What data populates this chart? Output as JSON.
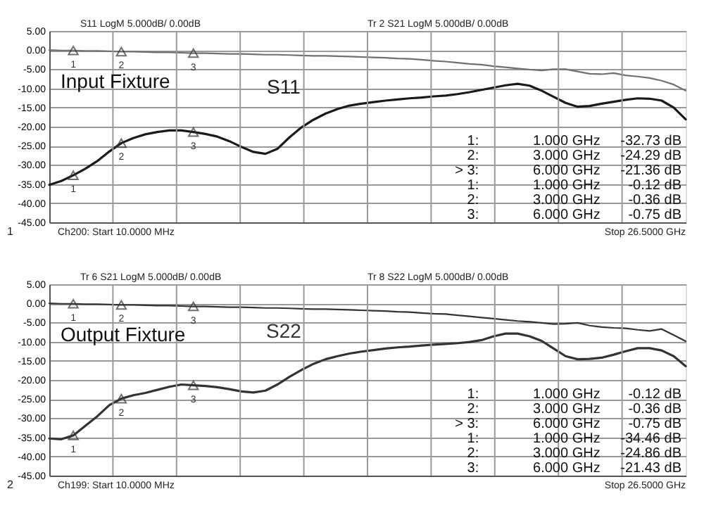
{
  "chart_data": [
    {
      "type": "line",
      "title": "Input Fixture",
      "ylim": [
        -45,
        5
      ],
      "grid": true,
      "tick_labels": "y",
      "categories": [
        null,
        null,
        null,
        null,
        null,
        null,
        null,
        null,
        null,
        null,
        null,
        null,
        null,
        null,
        null,
        null,
        null,
        null,
        null,
        null,
        null,
        null,
        null,
        null,
        null,
        null,
        null,
        null,
        null,
        null,
        null,
        null,
        null,
        null,
        null,
        null,
        null,
        null,
        null,
        null,
        null,
        null,
        null,
        null,
        null,
        null,
        null,
        null,
        null,
        null,
        null,
        null,
        null,
        null
      ],
      "yticks": [
        {
          "value": 5,
          "label": "5.00"
        },
        {
          "value": 0,
          "label": "0.00"
        },
        {
          "value": -5,
          "label": "-5.00"
        },
        {
          "value": -10,
          "label": "-10.00"
        },
        {
          "value": -15,
          "label": "-15.00"
        },
        {
          "value": -20,
          "label": "-20.00"
        },
        {
          "value": -25,
          "label": "-25.00"
        },
        {
          "value": -30,
          "label": "-30.00"
        },
        {
          "value": -35,
          "label": "-35.00"
        },
        {
          "value": -40,
          "label": "-40.00"
        },
        {
          "value": -45,
          "label": "-45.00"
        }
      ],
      "series": [
        {
          "name": "S11",
          "color": "#1a1a1a",
          "values": [
            -35.2,
            -34.2,
            -32.7,
            -31.0,
            -29.0,
            -26.5,
            -24.3,
            -23.0,
            -22.0,
            -21.4,
            -21.0,
            -21.0,
            -21.4,
            -21.9,
            -22.6,
            -23.8,
            -25.3,
            -26.6,
            -27.1,
            -25.8,
            -22.8,
            -20.2,
            -18.2,
            -16.6,
            -15.4,
            -14.5,
            -14.0,
            -13.6,
            -13.2,
            -12.9,
            -12.6,
            -12.4,
            -12.1,
            -11.9,
            -11.5,
            -11.0,
            -10.4,
            -9.8,
            -9.2,
            -8.8,
            -9.3,
            -10.6,
            -12.2,
            -13.8,
            -14.8,
            -14.6,
            -14.0,
            -13.5,
            -13.0,
            -12.6,
            -12.7,
            -13.2,
            -15.0,
            -18.1
          ]
        },
        {
          "color": "#707070",
          "values": [
            0.0,
            -0.1,
            -0.1,
            -0.2,
            -0.2,
            -0.3,
            -0.4,
            -0.4,
            -0.5,
            -0.6,
            -0.6,
            -0.7,
            -0.8,
            -0.8,
            -0.9,
            -1.0,
            -1.0,
            -1.1,
            -1.2,
            -1.2,
            -1.3,
            -1.4,
            -1.5,
            -1.5,
            -1.6,
            -1.7,
            -1.8,
            -1.9,
            -2.0,
            -2.2,
            -2.3,
            -2.5,
            -2.8,
            -3.0,
            -3.3,
            -3.6,
            -3.8,
            -4.2,
            -4.5,
            -4.8,
            -5.1,
            -5.3,
            -5.0,
            -5.0,
            -5.6,
            -6.2,
            -6.3,
            -6.0,
            -6.6,
            -6.9,
            -7.3,
            -8.0,
            -9.0,
            -10.6
          ]
        },
        {
          "type": "scatter",
          "marker": "triangle",
          "color": "#333333",
          "values": [
            null,
            null,
            -32.7,
            null,
            null,
            null,
            -24.3,
            null,
            null,
            null,
            null,
            null,
            -21.4,
            null,
            null,
            null,
            null,
            null,
            null,
            null,
            null,
            null,
            null,
            null,
            null,
            null,
            null,
            null,
            null,
            null,
            null,
            null,
            null,
            null,
            null,
            null,
            null,
            null,
            null,
            null,
            null,
            null,
            null,
            null,
            null,
            null,
            null,
            null,
            null,
            null,
            null,
            null,
            null,
            null
          ]
        },
        {
          "type": "scatter",
          "marker": "triangle",
          "color": "#333333",
          "values": [
            null,
            null,
            -0.1,
            null,
            null,
            null,
            -0.4,
            null,
            null,
            null,
            null,
            null,
            -0.8,
            null,
            null,
            null,
            null,
            null,
            null,
            null,
            null,
            null,
            null,
            null,
            null,
            null,
            null,
            null,
            null,
            null,
            null,
            null,
            null,
            null,
            null,
            null,
            null,
            null,
            null,
            null,
            null,
            null,
            null,
            null,
            null,
            null,
            null,
            null,
            null,
            null,
            null,
            null,
            null,
            null
          ]
        }
      ],
      "annotations": [
        "S11 LogM 5.000dB/ 0.00dB",
        "Tr 2 S21 LogM 5.000dB/ 0.00dB",
        "Ch200: Start 10.0000 MHz",
        "Stop 26.5000 GHz",
        "1",
        "1:",
        "1.000 GHz",
        "-32.73 dB",
        "2:",
        "3.000 GHz",
        "-24.29 dB",
        "> 3:",
        "6.000 GHz",
        "-21.36 dB",
        "1:",
        "1.000 GHz",
        "-0.12 dB",
        "2:",
        "3.000 GHz",
        "-0.36 dB",
        "3:",
        "6.000 GHz",
        "-0.75 dB",
        "1",
        "2",
        "3",
        "1",
        "2",
        "3"
      ]
    },
    {
      "type": "line",
      "title": "Output Fixture",
      "ylim": [
        -45,
        5
      ],
      "grid": true,
      "tick_labels": "y",
      "categories": [
        null,
        null,
        null,
        null,
        null,
        null,
        null,
        null,
        null,
        null,
        null,
        null,
        null,
        null,
        null,
        null,
        null,
        null,
        null,
        null,
        null,
        null,
        null,
        null,
        null,
        null,
        null,
        null,
        null,
        null,
        null,
        null,
        null,
        null,
        null,
        null,
        null,
        null,
        null,
        null,
        null,
        null,
        null,
        null,
        null,
        null,
        null,
        null,
        null,
        null,
        null,
        null,
        null,
        null
      ],
      "yticks": [
        {
          "value": 5,
          "label": "5.00"
        },
        {
          "value": 0,
          "label": "0.00"
        },
        {
          "value": -5,
          "label": "-5.00"
        },
        {
          "value": -10,
          "label": "-10.00"
        },
        {
          "value": -15,
          "label": "-15.00"
        },
        {
          "value": -20,
          "label": "-20.00"
        },
        {
          "value": -25,
          "label": "-25.00"
        },
        {
          "value": -30,
          "label": "-30.00"
        },
        {
          "value": -35,
          "label": "-35.00"
        },
        {
          "value": -40,
          "label": "-40.00"
        },
        {
          "value": -45,
          "label": "-45.00"
        }
      ],
      "series": [
        {
          "name": "S22",
          "color": "#333333",
          "values": [
            -35.3,
            -35.5,
            -34.5,
            -32.0,
            -29.5,
            -26.6,
            -24.9,
            -24.0,
            -23.4,
            -22.6,
            -21.8,
            -21.2,
            -21.4,
            -21.6,
            -21.9,
            -22.4,
            -23.0,
            -23.3,
            -22.8,
            -21.2,
            -19.2,
            -17.4,
            -15.8,
            -14.6,
            -13.8,
            -13.1,
            -12.6,
            -12.2,
            -11.8,
            -11.5,
            -11.3,
            -11.0,
            -10.8,
            -10.6,
            -10.4,
            -10.1,
            -9.6,
            -8.6,
            -7.9,
            -7.9,
            -8.6,
            -9.8,
            -11.8,
            -13.8,
            -14.6,
            -14.5,
            -14.2,
            -13.4,
            -12.5,
            -11.7,
            -11.7,
            -12.3,
            -13.8,
            -16.4
          ]
        },
        {
          "color": "#333333",
          "values": [
            0.0,
            -0.1,
            -0.1,
            -0.2,
            -0.2,
            -0.3,
            -0.4,
            -0.4,
            -0.5,
            -0.6,
            -0.6,
            -0.7,
            -0.8,
            -0.8,
            -0.9,
            -1.0,
            -1.0,
            -1.1,
            -1.2,
            -1.2,
            -1.3,
            -1.4,
            -1.5,
            -1.5,
            -1.6,
            -1.7,
            -1.8,
            -1.9,
            -2.0,
            -2.2,
            -2.3,
            -2.5,
            -2.7,
            -2.8,
            -3.1,
            -3.4,
            -3.7,
            -4.0,
            -4.3,
            -4.6,
            -4.8,
            -5.1,
            -5.4,
            -5.3,
            -5.1,
            -5.8,
            -6.2,
            -6.4,
            -6.5,
            -6.9,
            -7.2,
            -6.7,
            -8.3,
            -9.9
          ]
        },
        {
          "type": "scatter",
          "marker": "triangle",
          "color": "#333333",
          "values": [
            null,
            null,
            -34.5,
            null,
            null,
            null,
            -24.9,
            null,
            null,
            null,
            null,
            null,
            -21.4,
            null,
            null,
            null,
            null,
            null,
            null,
            null,
            null,
            null,
            null,
            null,
            null,
            null,
            null,
            null,
            null,
            null,
            null,
            null,
            null,
            null,
            null,
            null,
            null,
            null,
            null,
            null,
            null,
            null,
            null,
            null,
            null,
            null,
            null,
            null,
            null,
            null,
            null,
            null,
            null,
            null
          ]
        },
        {
          "type": "scatter",
          "marker": "triangle",
          "color": "#333333",
          "values": [
            null,
            null,
            -0.1,
            null,
            null,
            null,
            -0.4,
            null,
            null,
            null,
            null,
            null,
            -0.8,
            null,
            null,
            null,
            null,
            null,
            null,
            null,
            null,
            null,
            null,
            null,
            null,
            null,
            null,
            null,
            null,
            null,
            null,
            null,
            null,
            null,
            null,
            null,
            null,
            null,
            null,
            null,
            null,
            null,
            null,
            null,
            null,
            null,
            null,
            null,
            null,
            null,
            null,
            null,
            null,
            null
          ]
        }
      ],
      "annotations": [
        "Tr 6 S21 LogM 5.000dB/ 0.00dB",
        "Tr 8 S22 LogM 5.000dB/ 0.00dB",
        "Ch199: Start 10.0000 MHz",
        "Stop 26.5000 GHz",
        "2",
        "1:",
        "1.000 GHz",
        "-0.12 dB",
        "2:",
        "3.000 GHz",
        "-0.36 dB",
        "> 3:",
        "6.000 GHz",
        "-0.75 dB",
        "1:",
        "1.000 GHz",
        "-34.46 dB",
        "2:",
        "3.000 GHz",
        "-24.86 dB",
        "3:",
        "6.000 GHz",
        "-21.43 dB",
        "1",
        "2",
        "3",
        "1",
        "2",
        "3"
      ]
    }
  ]
}
